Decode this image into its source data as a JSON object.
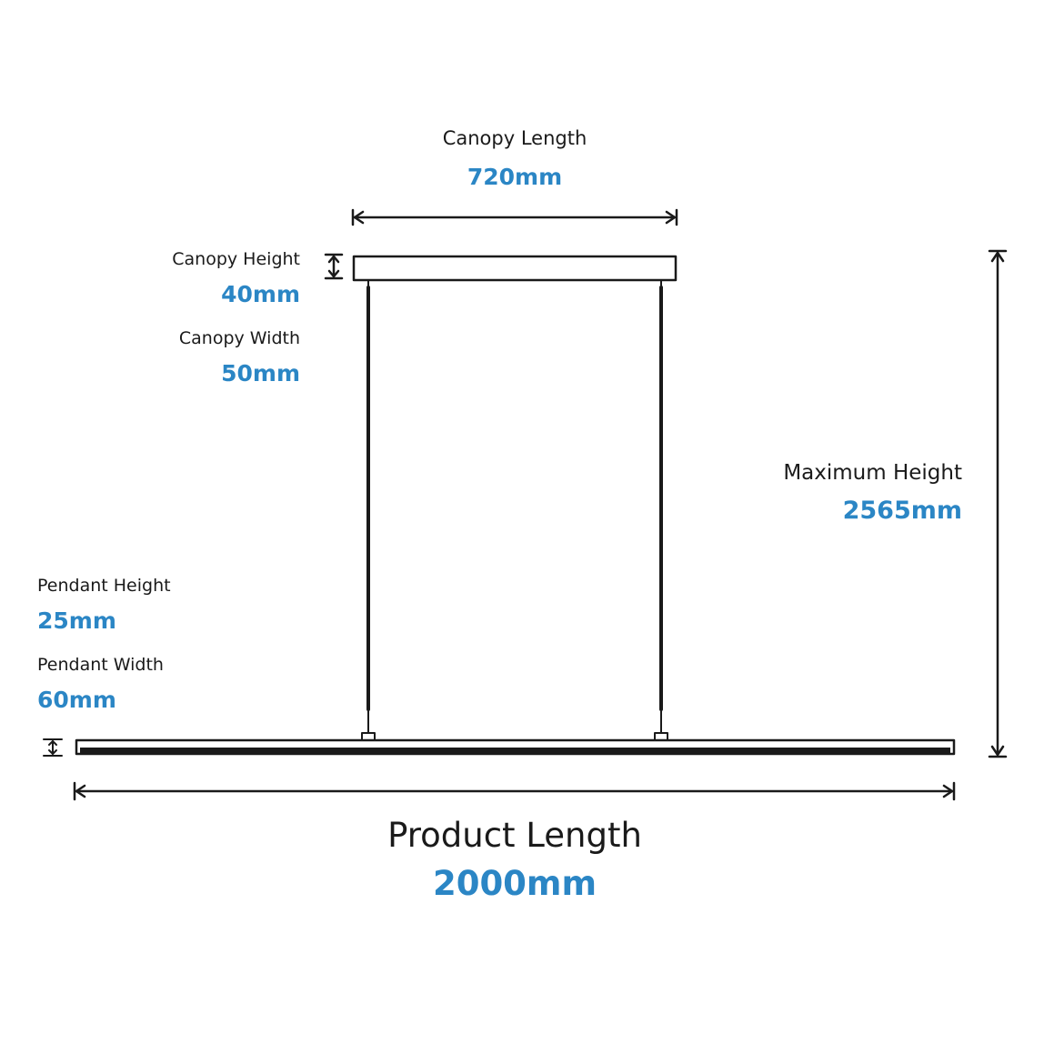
{
  "canopy_length": {
    "label": "Canopy Length",
    "value": "720mm"
  },
  "canopy_height": {
    "label": "Canopy Height",
    "value": "40mm"
  },
  "canopy_width": {
    "label": "Canopy Width",
    "value": "50mm"
  },
  "maximum_height": {
    "label": "Maximum Height",
    "value": "2565mm"
  },
  "pendant_height": {
    "label": "Pendant Height",
    "value": "25mm"
  },
  "pendant_width": {
    "label": "Pendant Width",
    "value": "60mm"
  },
  "product_length": {
    "label": "Product Length",
    "value": "2000mm"
  },
  "colors": {
    "line": "#1a1a1a",
    "accent": "#2b86c5"
  }
}
